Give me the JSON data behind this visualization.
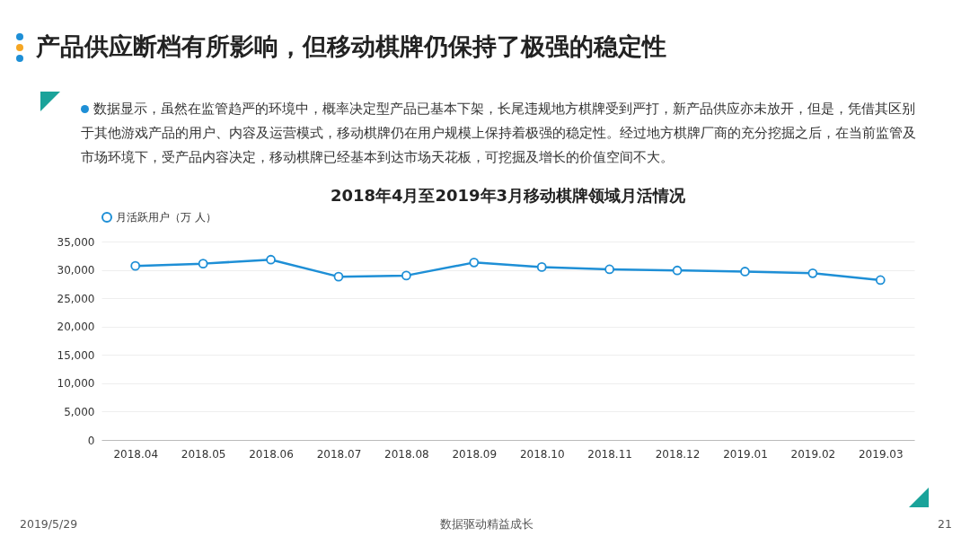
{
  "chart_data": {
    "type": "line",
    "title": "产品供应断档有所影响，但移动棋牌仍保持了极强的稳定性",
    "subtitle": "2018年4月至2019年3月移动棋牌领域月活情况",
    "categories": [
      "2018.04",
      "2018.05",
      "2018.06",
      "2018.07",
      "2018.08",
      "2018.09",
      "2018.10",
      "2018.11",
      "2018.12",
      "2019.01",
      "2019.02",
      "2019.03"
    ],
    "series": [
      {
        "name": "月活跃用户（万 人）",
        "color": "#1e8fd6",
        "values": [
          30700,
          31100,
          31800,
          28800,
          29000,
          31300,
          30500,
          30100,
          29900,
          29700,
          29400,
          28200
        ]
      }
    ],
    "ylim": [
      0,
      35000
    ],
    "yticks": [
      {
        "value": 0,
        "label": "0"
      },
      {
        "value": 5000,
        "label": "5,000"
      },
      {
        "value": 10000,
        "label": "10,000"
      },
      {
        "value": 15000,
        "label": "15,000"
      },
      {
        "value": 20000,
        "label": "20,000"
      },
      {
        "value": 25000,
        "label": "25,000"
      },
      {
        "value": 30000,
        "label": "30,000"
      },
      {
        "value": 35000,
        "label": "35,000"
      }
    ],
    "grid": "y",
    "legend": "top",
    "marker": "circle",
    "line_style": "solid",
    "annotations": [
      "数据显示，虽然在监管趋严的环境中，概率决定型产品已基本下架，长尾违规地方棋牌受到严打，新产品供应亦未放开，但是，凭借其区别于其他游戏产品的用户、内容及运营模式，移动棋牌仍在用户规模上保持着极强的稳定性。经过地方棋牌厂商的充分挖掘之后，在当前监管及市场环境下，受产品内容决定，移动棋牌已经基本到达市场天花板，可挖掘及增长的价值空间不大。",
      "2019/5/29",
      "数据驱动精益成长",
      "21"
    ]
  }
}
